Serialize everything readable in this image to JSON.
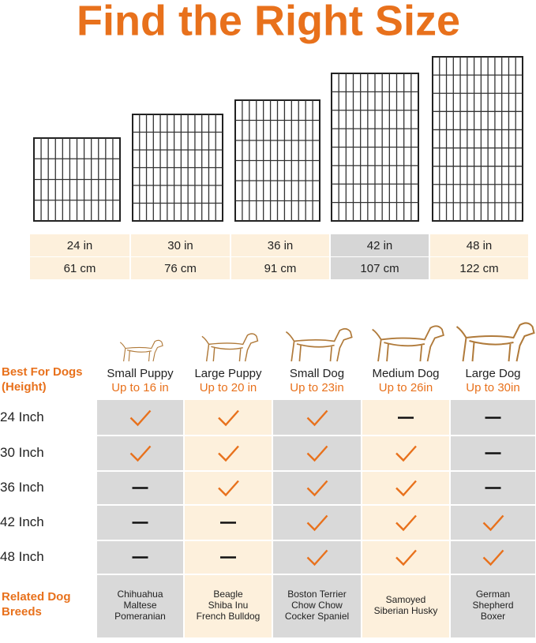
{
  "title": "Find the Right Size",
  "sizes": [
    {
      "inch": "24 in",
      "cm": "61 cm"
    },
    {
      "inch": "30 in",
      "cm": "76 cm"
    },
    {
      "inch": "36 in",
      "cm": "91 cm"
    },
    {
      "inch": "42 in",
      "cm": "107 cm"
    },
    {
      "inch": "48 in",
      "cm": "122 cm"
    }
  ],
  "table": {
    "corner": "Best For Dogs (Height)",
    "columns": [
      {
        "name": "Small Puppy",
        "height": "Up to 16 in"
      },
      {
        "name": "Large Puppy",
        "height": "Up to 20 in"
      },
      {
        "name": "Small Dog",
        "height": "Up to 23in"
      },
      {
        "name": "Medium Dog",
        "height": "Up to 26in"
      },
      {
        "name": "Large Dog",
        "height": "Up to 30in"
      }
    ],
    "rows": [
      {
        "label": "24 Inch",
        "fits": [
          true,
          true,
          true,
          false,
          false
        ]
      },
      {
        "label": "30 Inch",
        "fits": [
          true,
          true,
          true,
          true,
          false
        ]
      },
      {
        "label": "36 Inch",
        "fits": [
          false,
          true,
          true,
          true,
          false
        ]
      },
      {
        "label": "42 Inch",
        "fits": [
          false,
          false,
          true,
          true,
          true
        ]
      },
      {
        "label": "48 Inch",
        "fits": [
          false,
          false,
          true,
          true,
          true
        ]
      }
    ],
    "breeds_label": "Related Dog Breeds",
    "breeds": [
      [
        "Chihuahua",
        "Maltese",
        "Pomeranian"
      ],
      [
        "Beagle",
        "Shiba Inu",
        "French Bulldog"
      ],
      [
        "Boston Terrier",
        "Chow Chow",
        "Cocker Spaniel"
      ],
      [
        "Samoyed",
        "Siberian Husky"
      ],
      [
        "German",
        "Shepherd",
        "Boxer"
      ]
    ]
  }
}
